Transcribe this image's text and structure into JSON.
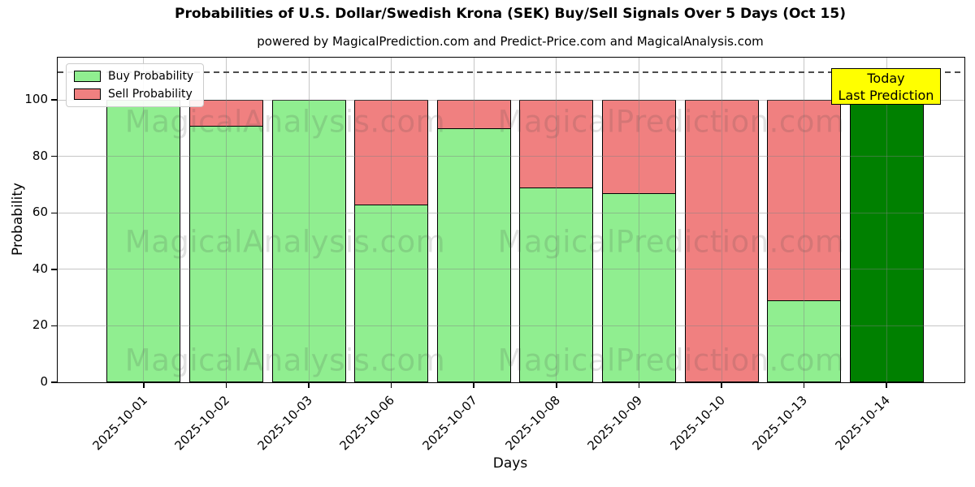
{
  "title": "Probabilities of U.S. Dollar/Swedish Krona (SEK) Buy/Sell Signals Over 5 Days (Oct 15)",
  "subtitle": "powered by MagicalPrediction.com and Predict-Price.com and MagicalAnalysis.com",
  "annotation_box": {
    "line1": "Today",
    "line2": "Last Prediction",
    "bg_color": "#FFFF00"
  },
  "watermarks": {
    "left": "MagicalAnalysis.com",
    "right": "MagicalPrediction.com"
  },
  "colors": {
    "buy": "#90EE90",
    "sell": "#F08080",
    "today_bar": "#008000",
    "bar_edge": "#000000",
    "grid": "#808080",
    "dashed_line": "#4d4d4d"
  },
  "chart_data": {
    "type": "bar",
    "stacked": true,
    "title": "Probabilities of U.S. Dollar/Swedish Krona (SEK) Buy/Sell Signals Over 5 Days (Oct 15)",
    "xlabel": "Days",
    "ylabel": "Probability",
    "categories": [
      "2025-10-01",
      "2025-10-02",
      "2025-10-03",
      "2025-10-06",
      "2025-10-07",
      "2025-10-08",
      "2025-10-09",
      "2025-10-10",
      "2025-10-13",
      "2025-10-14"
    ],
    "series": [
      {
        "name": "Buy Probability",
        "color": "#90EE90",
        "values": [
          100,
          91,
          100,
          63,
          90,
          69,
          67,
          0,
          29,
          100
        ]
      },
      {
        "name": "Sell Probability",
        "color": "#F08080",
        "values": [
          0,
          9,
          0,
          37,
          10,
          31,
          33,
          100,
          71,
          0
        ]
      }
    ],
    "today_bar": {
      "date": "2025-10-14",
      "color": "#008000",
      "label": "Today / Last Prediction"
    },
    "ylim": [
      0,
      115
    ],
    "yticks": [
      0,
      20,
      40,
      60,
      80,
      100
    ],
    "dashed_line_y": 110,
    "grid": true,
    "legend_position": "upper left"
  }
}
